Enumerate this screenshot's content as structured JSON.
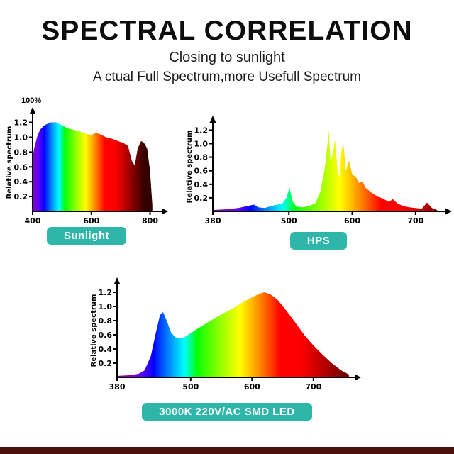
{
  "page": {
    "title": "SPECTRAL CORRELATION",
    "subtitle1": "Closing to sunlight",
    "subtitle2": "A ctual Full Spectrum,more Usefull Spectrum",
    "percent_label": "100%"
  },
  "theme": {
    "badge_color": "#2eb6aa",
    "badge_text_color": "#ffffff",
    "bottom_bar_color": "#4b120b",
    "axis_color": "#000000"
  },
  "chart_data": [
    {
      "type": "area",
      "id": "sunlight",
      "badge": "Sunlight",
      "ylabel": "Relative spectrum",
      "xlabel": "",
      "yticks": [
        0.2,
        0.4,
        0.6,
        0.8,
        1.0,
        1.2
      ],
      "ylim": [
        0,
        1.32
      ],
      "xticks": [
        400,
        600,
        800
      ],
      "xlim": [
        400,
        835
      ],
      "grid": false,
      "legend": "none",
      "points": [
        [
          400,
          0.72
        ],
        [
          405,
          0.85
        ],
        [
          415,
          1.0
        ],
        [
          425,
          1.1
        ],
        [
          440,
          1.16
        ],
        [
          460,
          1.2
        ],
        [
          480,
          1.2
        ],
        [
          500,
          1.16
        ],
        [
          520,
          1.12
        ],
        [
          540,
          1.1
        ],
        [
          560,
          1.08
        ],
        [
          580,
          1.05
        ],
        [
          600,
          1.03
        ],
        [
          615,
          1.06
        ],
        [
          630,
          1.04
        ],
        [
          650,
          1.0
        ],
        [
          670,
          0.98
        ],
        [
          690,
          0.95
        ],
        [
          710,
          0.92
        ],
        [
          725,
          0.88
        ],
        [
          738,
          0.68
        ],
        [
          748,
          0.62
        ],
        [
          758,
          0.85
        ],
        [
          770,
          0.95
        ],
        [
          780,
          0.92
        ],
        [
          790,
          0.85
        ],
        [
          800,
          0.55
        ],
        [
          808,
          0.08
        ]
      ]
    },
    {
      "type": "area",
      "id": "hps",
      "badge": "HPS",
      "ylabel": "Relative spectrum",
      "xlabel": "",
      "yticks": [
        0.2,
        0.4,
        0.6,
        0.8,
        1.0,
        1.2
      ],
      "ylim": [
        0,
        1.32
      ],
      "xticks": [
        380,
        500,
        600,
        700
      ],
      "xlim": [
        380,
        745
      ],
      "grid": false,
      "legend": "none",
      "points": [
        [
          380,
          0.02
        ],
        [
          400,
          0.03
        ],
        [
          420,
          0.05
        ],
        [
          435,
          0.08
        ],
        [
          445,
          0.1
        ],
        [
          452,
          0.06
        ],
        [
          462,
          0.05
        ],
        [
          472,
          0.08
        ],
        [
          482,
          0.1
        ],
        [
          490,
          0.12
        ],
        [
          496,
          0.2
        ],
        [
          501,
          0.35
        ],
        [
          506,
          0.15
        ],
        [
          512,
          0.07
        ],
        [
          522,
          0.06
        ],
        [
          532,
          0.08
        ],
        [
          542,
          0.12
        ],
        [
          550,
          0.3
        ],
        [
          556,
          0.6
        ],
        [
          560,
          0.9
        ],
        [
          563,
          1.2
        ],
        [
          566,
          0.7
        ],
        [
          570,
          0.9
        ],
        [
          573,
          1.05
        ],
        [
          577,
          0.6
        ],
        [
          580,
          0.5
        ],
        [
          583,
          0.9
        ],
        [
          586,
          1.0
        ],
        [
          590,
          0.6
        ],
        [
          595,
          0.75
        ],
        [
          600,
          0.55
        ],
        [
          606,
          0.5
        ],
        [
          611,
          0.42
        ],
        [
          616,
          0.45
        ],
        [
          621,
          0.35
        ],
        [
          630,
          0.28
        ],
        [
          640,
          0.22
        ],
        [
          650,
          0.18
        ],
        [
          658,
          0.14
        ],
        [
          664,
          0.18
        ],
        [
          671,
          0.12
        ],
        [
          680,
          0.08
        ],
        [
          690,
          0.06
        ],
        [
          700,
          0.05
        ],
        [
          710,
          0.04
        ],
        [
          718,
          0.13
        ],
        [
          726,
          0.05
        ],
        [
          734,
          0.02
        ]
      ]
    },
    {
      "type": "area",
      "id": "led",
      "badge": "3000K 220V/AC SMD LED",
      "ylabel": "Relative spectrum",
      "xlabel": "",
      "yticks": [
        0.2,
        0.4,
        0.6,
        0.8,
        1.0,
        1.2
      ],
      "ylim": [
        0,
        1.32
      ],
      "xticks": [
        380,
        500,
        600,
        700
      ],
      "xlim": [
        380,
        765
      ],
      "grid": false,
      "legend": "none",
      "points": [
        [
          380,
          0.02
        ],
        [
          400,
          0.03
        ],
        [
          415,
          0.05
        ],
        [
          425,
          0.1
        ],
        [
          435,
          0.3
        ],
        [
          443,
          0.62
        ],
        [
          450,
          0.88
        ],
        [
          455,
          0.92
        ],
        [
          461,
          0.8
        ],
        [
          468,
          0.63
        ],
        [
          476,
          0.56
        ],
        [
          486,
          0.55
        ],
        [
          496,
          0.6
        ],
        [
          510,
          0.68
        ],
        [
          525,
          0.76
        ],
        [
          540,
          0.84
        ],
        [
          555,
          0.91
        ],
        [
          570,
          0.98
        ],
        [
          585,
          1.06
        ],
        [
          600,
          1.13
        ],
        [
          612,
          1.18
        ],
        [
          620,
          1.2
        ],
        [
          630,
          1.17
        ],
        [
          641,
          1.1
        ],
        [
          655,
          0.95
        ],
        [
          670,
          0.78
        ],
        [
          685,
          0.6
        ],
        [
          700,
          0.45
        ],
        [
          715,
          0.32
        ],
        [
          730,
          0.2
        ],
        [
          745,
          0.1
        ],
        [
          758,
          0.04
        ]
      ]
    }
  ]
}
